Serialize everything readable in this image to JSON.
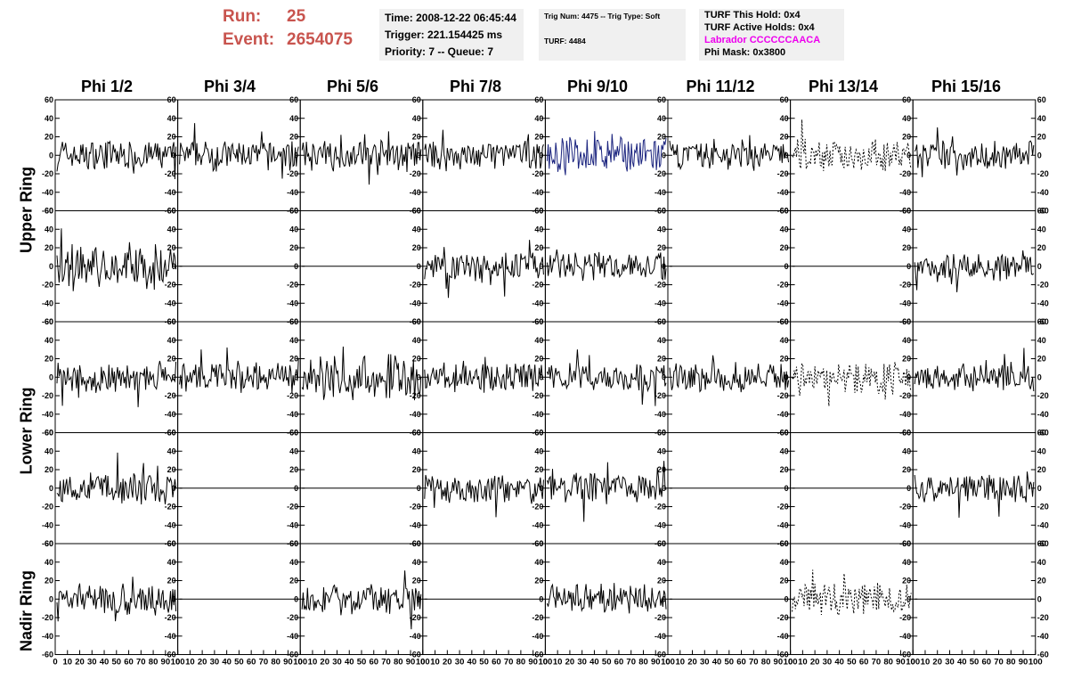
{
  "header": {
    "run_label": "Run:",
    "run_value": "25",
    "event_label": "Event:",
    "event_value": "2654075",
    "time": "Time: 2008-12-22 06:45:44",
    "trigger": "Trigger: 221.154425 ms",
    "priority": "Priority: 7 -- Queue: 7",
    "trig_num": "Trig Num: 4475 -- Trig Type: Soft",
    "turf": "TURF: 4484",
    "turf_this_hold": "TURF This Hold: 0x4",
    "turf_active_holds": "TURF Active Holds: 0x4",
    "labrador": "Labrador CCCCCCAACA",
    "phi_mask": "Phi Mask: 0x3800",
    "labrador_color": "#ee00ee",
    "run_color": "#c8544e"
  },
  "rings": [
    "Upper Ring",
    "Lower Ring",
    "Nadir Ring"
  ],
  "phi_columns": [
    "Phi 1/2",
    "Phi 3/4",
    "Phi 5/6",
    "Phi 7/8",
    "Phi 9/10",
    "Phi 11/12",
    "Phi 13/14",
    "Phi 15/16"
  ],
  "chart_data": {
    "type": "line",
    "layout": "grid 5 rows x 8 columns of waveform panels",
    "xlim": [
      0,
      100
    ],
    "ylim": [
      -60,
      60
    ],
    "y_ticks": [
      -60,
      -40,
      -20,
      0,
      20,
      40,
      60
    ],
    "x_tick_labels": [
      "0",
      "10",
      "20",
      "30",
      "40",
      "50",
      "60",
      "70",
      "80",
      "90",
      "100"
    ],
    "colors": {
      "normal": "#000000",
      "triggered": "#1a237e"
    },
    "panels": [
      [
        "wave",
        "wave",
        "wave",
        "wave",
        "blue",
        "wave",
        "dashed",
        "wave"
      ],
      [
        "wild",
        "flat",
        "flat",
        "wave",
        "wave",
        "flat",
        "flat",
        "wave"
      ],
      [
        "wave",
        "wave",
        "wild",
        "wave",
        "wave",
        "wave",
        "dashed",
        "wave"
      ],
      [
        "wave",
        "flat",
        "flat",
        "wave",
        "wave",
        "flat",
        "flat",
        "wave"
      ],
      [
        "wave",
        "flat",
        "wave",
        "flat",
        "wave",
        "flat",
        "dashed",
        "flat"
      ]
    ]
  }
}
